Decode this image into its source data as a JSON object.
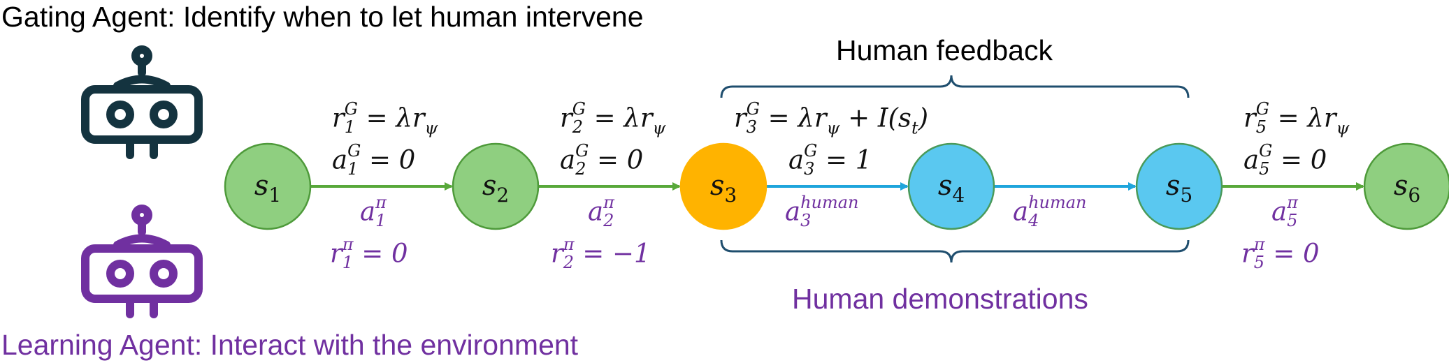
{
  "gating_caption": "Gating Agent: Identify when to let human intervene",
  "learning_caption": "Learning Agent: Interact with the environment",
  "top_brace_label": "Human feedback",
  "bottom_brace_label": "Human demonstrations",
  "colors": {
    "gating": "#14333f",
    "learning": "#7030a0",
    "agent_node_fill": "#8fcf80",
    "agent_node_stroke": "#4e9a3a",
    "human_node_fill": "#5ac8f0",
    "human_node_stroke": "#4a9a5a",
    "current_node_fill": "#ffb300",
    "agent_arrow": "#58a83a",
    "human_arrow": "#1fa5dc",
    "brace": "#1f4e6e"
  },
  "nodes": [
    {
      "s": "s",
      "i": "1",
      "kind": "agent"
    },
    {
      "s": "s",
      "i": "2",
      "kind": "agent"
    },
    {
      "s": "s",
      "i": "3",
      "kind": "current"
    },
    {
      "s": "s",
      "i": "4",
      "kind": "human"
    },
    {
      "s": "s",
      "i": "5",
      "kind": "human"
    },
    {
      "s": "s",
      "i": "6",
      "kind": "agent"
    }
  ],
  "edges": [
    {
      "kind": "agent",
      "i": "1",
      "action_sup": "π",
      "reward_rhs": "= 0",
      "gate_r_rhs": "= λr",
      "gate_r_tail": "ψ",
      "gate_extra": "",
      "gate_a_rhs": "= 0"
    },
    {
      "kind": "agent",
      "i": "2",
      "action_sup": "π",
      "reward_rhs": "= −1",
      "gate_r_rhs": "= λr",
      "gate_r_tail": "ψ",
      "gate_extra": "",
      "gate_a_rhs": "= 0"
    },
    {
      "kind": "human",
      "i": "3",
      "action_sup": "human",
      "reward_rhs": "",
      "gate_r_rhs": "= λr",
      "gate_r_tail": "ψ",
      "gate_extra": "+ I(s",
      "gate_extra_sub": "t",
      "gate_extra_end": ")",
      "gate_a_rhs": "= 1"
    },
    {
      "kind": "human",
      "i": "4",
      "action_sup": "human",
      "reward_rhs": "",
      "gate_r_rhs": "",
      "gate_r_tail": "",
      "gate_extra": "",
      "gate_a_rhs": ""
    },
    {
      "kind": "agent",
      "i": "5",
      "action_sup": "π",
      "reward_rhs": "= 0",
      "gate_r_rhs": "= λr",
      "gate_r_tail": "ψ",
      "gate_extra": "",
      "gate_a_rhs": "= 0"
    }
  ],
  "symbols": {
    "r": "r",
    "a": "a",
    "gate_sup": "G"
  }
}
